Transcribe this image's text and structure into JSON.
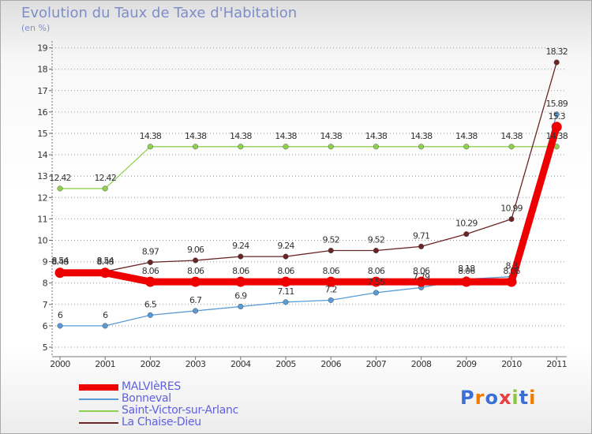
{
  "title": "Evolution du Taux de Taxe d'Habitation",
  "subtitle": "(en %)",
  "logo_text": "Proxiti",
  "colors": {
    "title": "#7f8ec8",
    "legend_text": "#6060e0",
    "grid": "#999999",
    "malvieres": "#ee0000",
    "bonneval": "#5b9bd5",
    "saint_victor": "#8fd14f",
    "la_chaise_dieu": "#6b2525"
  },
  "chart_data": {
    "type": "line",
    "title": "Evolution du Taux de Taxe d'Habitation",
    "ylabel": "(en %)",
    "xlabel": "",
    "x": [
      "2000",
      "2001",
      "2002",
      "2003",
      "2004",
      "2005",
      "2006",
      "2007",
      "2008",
      "2009",
      "2010",
      "2011"
    ],
    "ylim": [
      5,
      19
    ],
    "yticks": [
      "5",
      "6",
      "7",
      "8",
      "9",
      "10",
      "11",
      "12",
      "13",
      "14",
      "15",
      "16",
      "17",
      "18",
      "19"
    ],
    "grid": "horizontal dashed",
    "legend_position": "bottom-left",
    "series": [
      {
        "name": "Bonneval",
        "color": "#5b9bd5",
        "width": "thin",
        "values": [
          6,
          6,
          6.5,
          6.7,
          6.9,
          7.11,
          7.2,
          7.55,
          7.79,
          8.18,
          8.3,
          15.89
        ],
        "labels": [
          "6",
          "6",
          "6.5",
          "6.7",
          "6.9",
          "7.11",
          "7.2",
          "7.55",
          "7.79",
          "8.18",
          "8.3",
          "15.89"
        ]
      },
      {
        "name": "Saint-Victor-sur-Arlanc",
        "color": "#8fd14f",
        "width": "thin",
        "values": [
          12.42,
          12.42,
          14.38,
          14.38,
          14.38,
          14.38,
          14.38,
          14.38,
          14.38,
          14.38,
          14.38,
          14.38
        ],
        "labels": [
          "12.42",
          "12.42",
          "14.38",
          "14.38",
          "14.38",
          "14.38",
          "14.38",
          "14.38",
          "14.38",
          "14.38",
          "14.38",
          "14.38"
        ]
      },
      {
        "name": "La Chaise-Dieu",
        "color": "#6b2525",
        "width": "thin",
        "values": [
          8.54,
          8.54,
          8.97,
          9.06,
          9.24,
          9.24,
          9.52,
          9.52,
          9.71,
          10.29,
          10.99,
          18.32
        ],
        "labels": [
          "8.54",
          "8.54",
          "8.97",
          "9.06",
          "9.24",
          "9.24",
          "9.52",
          "9.52",
          "9.71",
          "10.29",
          "10.99",
          "18.32"
        ]
      },
      {
        "name": "MALVIèRES",
        "color": "#ee0000",
        "width": "thick",
        "values": [
          8.48,
          8.48,
          8.06,
          8.06,
          8.06,
          8.06,
          8.06,
          8.06,
          8.06,
          8.06,
          8.06,
          15.3
        ],
        "labels": [
          "8.48",
          "8.48",
          "8.06",
          "8.06",
          "8.06",
          "8.06",
          "8.06",
          "8.06",
          "8.06",
          "8.06",
          "8.06",
          "15.3"
        ]
      }
    ],
    "legend": [
      "MALVIèRES",
      "Bonneval",
      "Saint-Victor-sur-Arlanc",
      "La Chaise-Dieu"
    ]
  }
}
